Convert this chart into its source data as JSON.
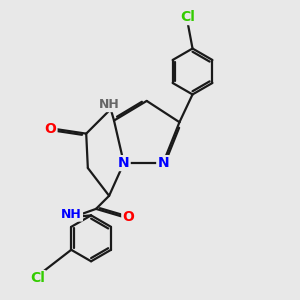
{
  "background_color": "#e8e8e8",
  "bond_color": "#1a1a1a",
  "nitrogen_color": "#0000ff",
  "oxygen_color": "#ff0000",
  "chlorine_color": "#33cc00",
  "hydrogen_color": "#666666",
  "line_width": 1.6,
  "dbo": 0.06,
  "figsize": [
    3.0,
    3.0
  ],
  "dpi": 100,
  "xlim": [
    0,
    10
  ],
  "ylim": [
    0,
    10
  ]
}
